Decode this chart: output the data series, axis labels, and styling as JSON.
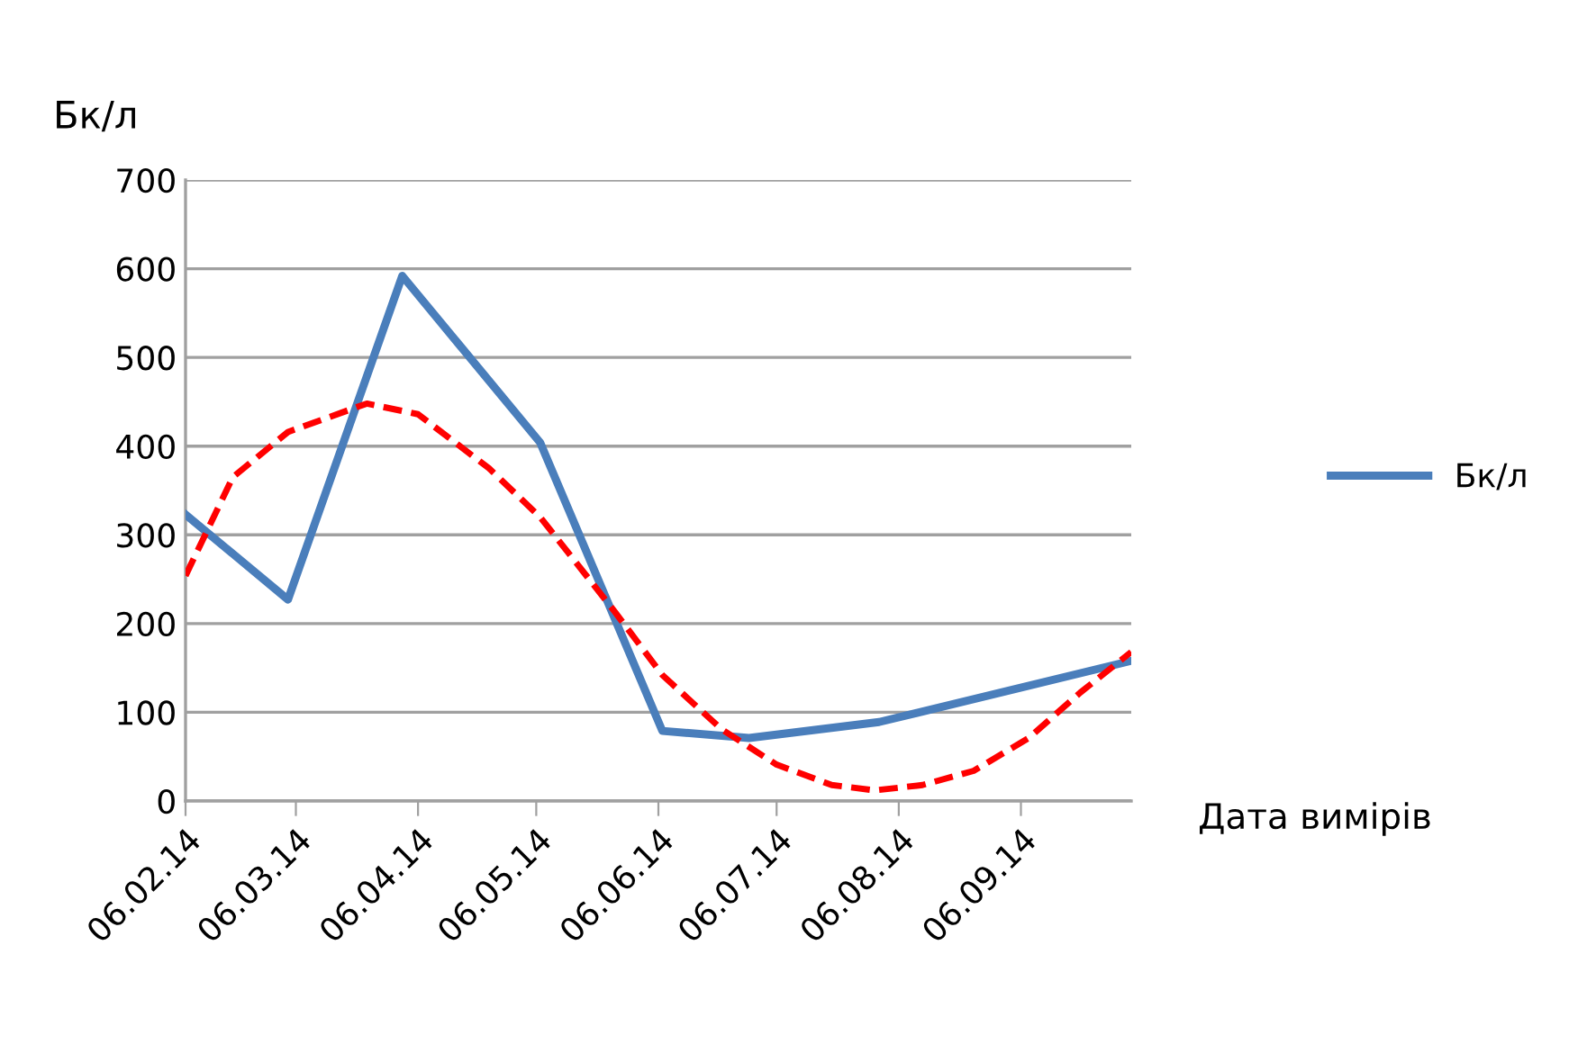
{
  "chart_data": {
    "type": "line",
    "ylabel": "Бк/л",
    "xlabel": "Дата вимірів",
    "series": [
      {
        "name": "Бк/л",
        "color": "#4a7ebb",
        "x": [
          "2014-02-06",
          "2014-03-04",
          "2014-04-02",
          "2014-05-07",
          "2014-06-07",
          "2014-06-29",
          "2014-08-01",
          "2014-10-04"
        ],
        "values": [
          323,
          227,
          592,
          404,
          79,
          71,
          89,
          158
        ]
      },
      {
        "type": "line",
        "color": "#ff0000",
        "line_style": "dashed",
        "x": [
          "2014-02-06",
          "2014-02-18",
          "2014-03-04",
          "2014-03-24",
          "2014-04-06",
          "2014-04-24",
          "2014-05-07",
          "2014-05-26",
          "2014-06-07",
          "2014-06-22",
          "2014-07-06",
          "2014-07-20",
          "2014-07-31",
          "2014-08-12",
          "2014-08-25",
          "2014-09-08",
          "2014-09-21",
          "2014-10-04"
        ],
        "values": [
          254,
          365,
          416,
          448,
          436,
          375,
          320,
          213,
          142,
          81,
          41,
          18,
          12,
          18,
          34,
          71,
          122,
          168
        ]
      }
    ],
    "xlim": [
      "2014-02-06",
      "2014-10-04"
    ],
    "xticks": [
      {
        "value": "2014-02-06",
        "label": "06.02.14"
      },
      {
        "value": "2014-03-06",
        "label": "06.03.14"
      },
      {
        "value": "2014-04-06",
        "label": "06.04.14"
      },
      {
        "value": "2014-05-06",
        "label": "06.05.14"
      },
      {
        "value": "2014-06-06",
        "label": "06.06.14"
      },
      {
        "value": "2014-07-06",
        "label": "06.07.14"
      },
      {
        "value": "2014-08-06",
        "label": "06.08.14"
      },
      {
        "value": "2014-09-06",
        "label": "06.09.14"
      }
    ],
    "ylim": [
      0,
      700
    ],
    "yticks": [
      0,
      100,
      200,
      300,
      400,
      500,
      600,
      700
    ],
    "grid": "y",
    "legend": "right",
    "line_style": "solid",
    "marker": "none"
  }
}
